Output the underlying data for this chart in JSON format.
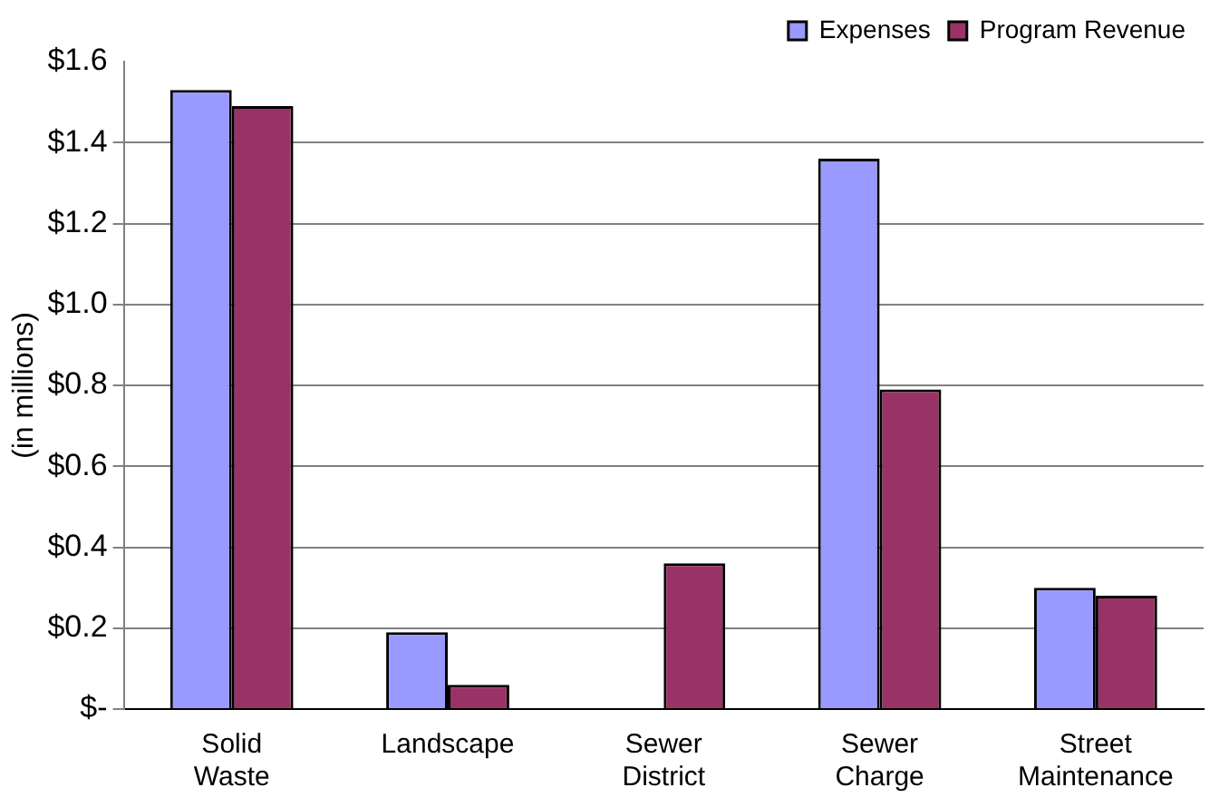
{
  "chart_data": {
    "type": "bar",
    "ylabel": "(in millions)",
    "categories": [
      "Solid Waste",
      "Landscape",
      "Sewer District",
      "Sewer Charge",
      "Street Maintenance"
    ],
    "series": [
      {
        "name": "Expenses",
        "color": "#9999ff",
        "values": [
          1.53,
          0.19,
          0,
          1.36,
          0.3
        ]
      },
      {
        "name": "Program Revenue",
        "color": "#993366",
        "values": [
          1.49,
          0.06,
          0.36,
          0.79,
          0.28
        ]
      }
    ],
    "ylim": [
      0,
      1.6
    ],
    "yticks": [
      {
        "value": 0,
        "label": "$-"
      },
      {
        "value": 0.2,
        "label": "$0.2"
      },
      {
        "value": 0.4,
        "label": "$0.4"
      },
      {
        "value": 0.6,
        "label": "$0.6"
      },
      {
        "value": 0.8,
        "label": "$0.8"
      },
      {
        "value": 1.0,
        "label": "$1.0"
      },
      {
        "value": 1.2,
        "label": "$1.2"
      },
      {
        "value": 1.4,
        "label": "$1.4"
      },
      {
        "value": 1.6,
        "label": "$1.6"
      }
    ],
    "grid": "y",
    "legend": "top right"
  }
}
